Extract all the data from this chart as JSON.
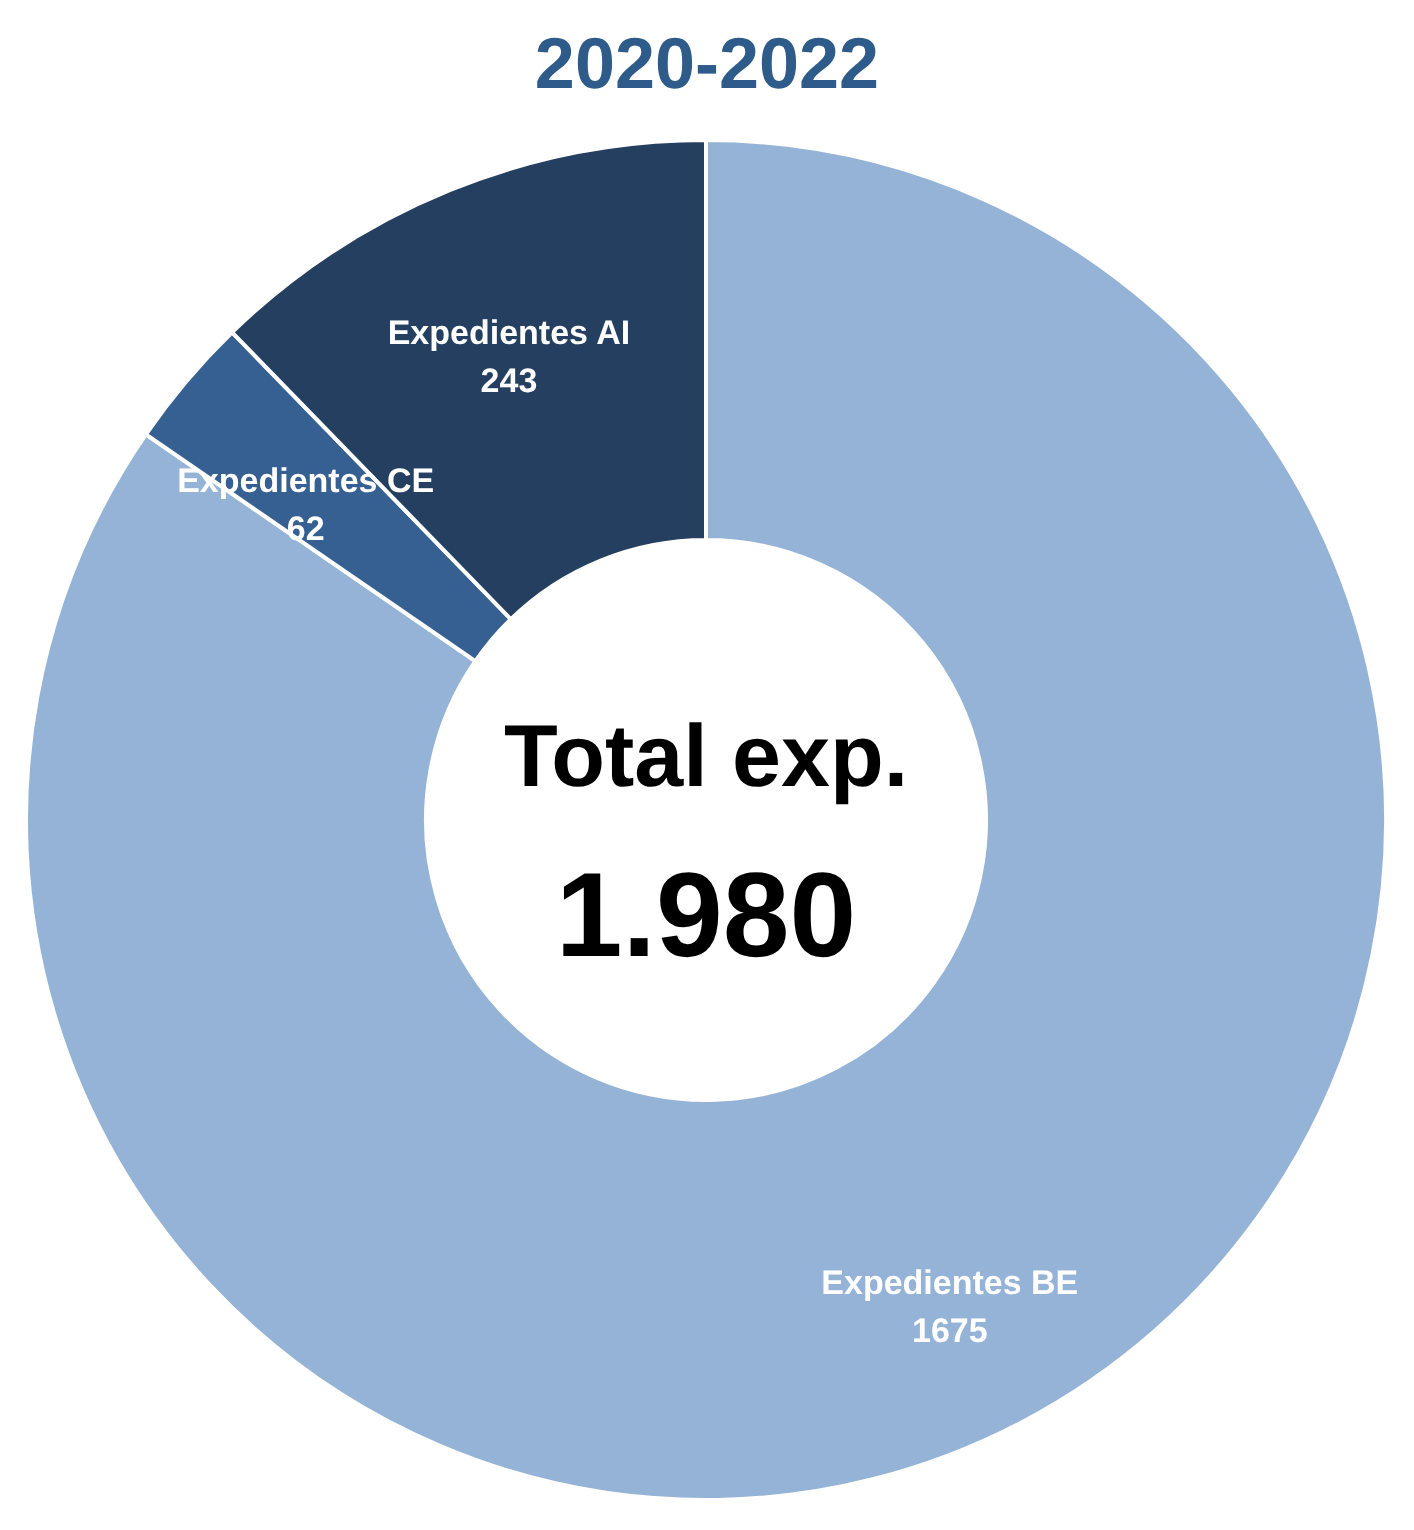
{
  "chart_data": {
    "type": "donut",
    "title": "2020-2022",
    "categories": [
      "Expedientes BE",
      "Expedientes CE",
      "Expedientes AI"
    ],
    "values": [
      1675,
      62,
      243
    ],
    "colors": [
      "#95b3d7",
      "#376092",
      "#243f60"
    ],
    "data_labels": true,
    "legend": false,
    "annotations": [
      "Total exp.",
      "1.980"
    ]
  }
}
